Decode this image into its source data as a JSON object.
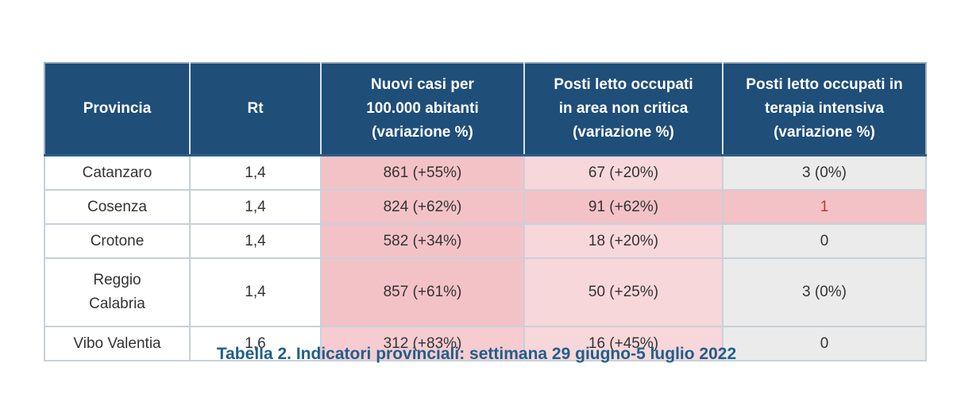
{
  "table": {
    "headers": [
      "Provincia",
      "Rt",
      "Nuovi casi per 100.000 abitanti (variazione %)",
      "Posti letto occupati in area non critica (variazione %)",
      "Posti letto occupati in terapia intensiva (variazione %)"
    ],
    "header_lines": [
      [
        "Provincia"
      ],
      [
        "Rt"
      ],
      [
        "Nuovi casi per",
        "100.000 abitanti",
        "(variazione %)"
      ],
      [
        "Posti letto occupati",
        "in area non critica",
        "(variazione %)"
      ],
      [
        "Posti letto occupati in",
        "terapia intensiva",
        "(variazione %)"
      ]
    ],
    "rows": [
      {
        "provincia_lines": [
          "Catanzaro"
        ],
        "rt": "1,4",
        "nuovi_casi": "861 (+55%)",
        "area_non_critica": "67 (+20%)",
        "terapia_intensiva": "3 (0%)"
      },
      {
        "provincia_lines": [
          "Cosenza"
        ],
        "rt": "1,4",
        "nuovi_casi": "824 (+62%)",
        "area_non_critica": "91 (+62%)",
        "terapia_intensiva": "1"
      },
      {
        "provincia_lines": [
          "Crotone"
        ],
        "rt": "1,4",
        "nuovi_casi": "582 (+34%)",
        "area_non_critica": "18 (+20%)",
        "terapia_intensiva": "0"
      },
      {
        "provincia_lines": [
          "Reggio",
          "Calabria"
        ],
        "rt": "1,4",
        "nuovi_casi": "857 (+61%)",
        "area_non_critica": "50 (+25%)",
        "terapia_intensiva": "3 (0%)"
      },
      {
        "provincia_lines": [
          "Vibo Valentia"
        ],
        "rt": "1,6",
        "nuovi_casi": "312 (+83%)",
        "area_non_critica": "16 (+45%)",
        "terapia_intensiva": "0"
      }
    ]
  },
  "caption": "Tabella 2. Indicatori provinciali: settimana 29 giugno-5 luglio 2022",
  "colors": {
    "header_bg": "#1f4e79",
    "header_text": "#ffffff",
    "highlight_strong": "#f3c2c7",
    "highlight_light": "#f8d7db",
    "neutral_grey": "#ebebeb",
    "caption_text": "#1f5f8b",
    "alert_text": "#c0392b"
  }
}
